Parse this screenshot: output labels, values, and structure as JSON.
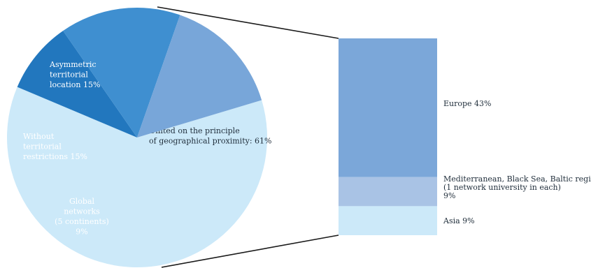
{
  "chart_data": [
    {
      "type": "pie",
      "slices": [
        {
          "label_lines": [
            "United on the principle",
            "of geographical proximity: 61%"
          ],
          "value": 61,
          "color": "#cce9f9"
        },
        {
          "label_lines": [
            "Global",
            "networks",
            "(5 continents)",
            "9%"
          ],
          "value": 9,
          "color": "#2277be"
        },
        {
          "label_lines": [
            "Without",
            "territorial",
            "restrictions 15%"
          ],
          "value": 15,
          "color": "#3f8fd0"
        },
        {
          "label_lines": [
            "Asymmetric",
            "territorial",
            "location 15%"
          ],
          "value": 15,
          "color": "#78a6d9"
        }
      ]
    },
    {
      "type": "bar",
      "stacked": true,
      "segments": [
        {
          "label_lines": [
            "Europe 43%"
          ],
          "value": 43,
          "color": "#7ba7d9"
        },
        {
          "label_lines": [
            "Mediterranean, Black Sea, Baltic regions",
            "(1 network university in each)",
            "9%"
          ],
          "value": 9,
          "color": "#a9c3e5"
        },
        {
          "label_lines": [
            "Asia 9%"
          ],
          "value": 9,
          "color": "#cce9f9"
        }
      ]
    }
  ]
}
